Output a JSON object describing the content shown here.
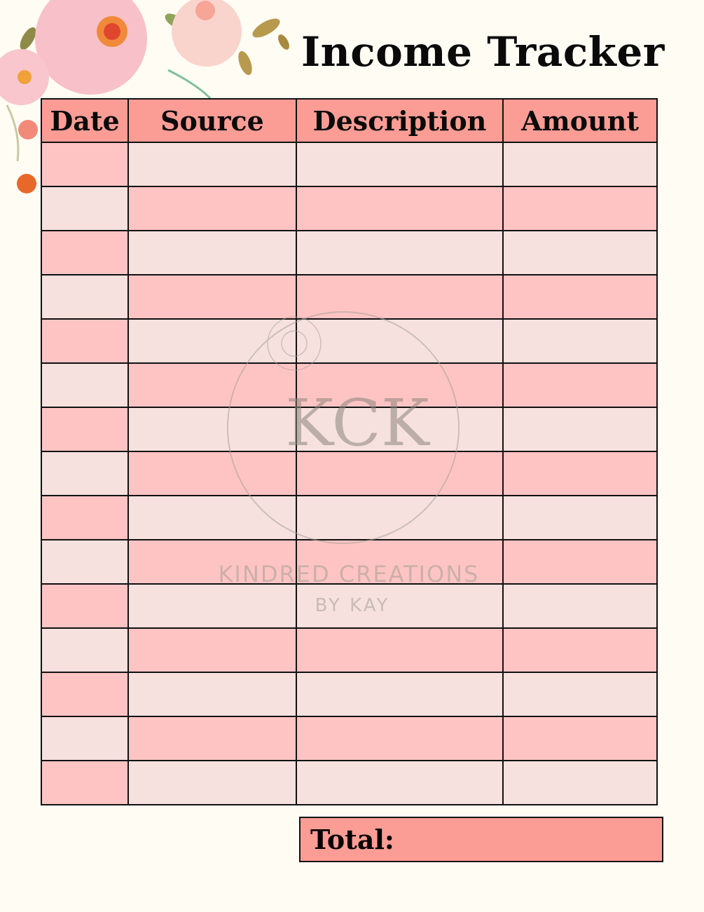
{
  "title": "Income Tracker",
  "table": {
    "columns": [
      "Date",
      "Source",
      "Description",
      "Amount"
    ],
    "row_count": 15
  },
  "total_label": "Total:",
  "watermark": {
    "monogram": "KCK",
    "line1": "KINDRED CREATIONS",
    "line2": "BY KAY"
  },
  "colors": {
    "header": "#fc9d95",
    "row_pink": "#fec4c4",
    "row_light": "#f6e1de",
    "background": "#fffcf4"
  }
}
